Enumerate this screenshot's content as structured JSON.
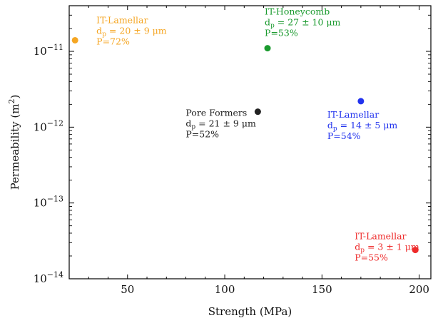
{
  "chart_data": {
    "type": "scatter",
    "title": "",
    "xlabel": "Strength (MPa)",
    "ylabel": "Permeability (m²)",
    "xlim": [
      20,
      206
    ],
    "ylim": [
      1e-14,
      4e-11
    ],
    "yscale": "log",
    "xticks": [
      50,
      100,
      150,
      200
    ],
    "yticks": [
      {
        "value": 1e-14,
        "mantissa": "10",
        "exponent": "−14"
      },
      {
        "value": 1e-13,
        "mantissa": "10",
        "exponent": "−13"
      },
      {
        "value": 1e-12,
        "mantissa": "10",
        "exponent": "−12"
      },
      {
        "value": 1e-11,
        "mantissa": "10",
        "exponent": "−11"
      }
    ],
    "grid": false,
    "points": [
      {
        "x": 23,
        "y": 1.4e-11,
        "color": "#f5a623",
        "label": {
          "name": "IT-Lamellar",
          "dp_prefix": "d",
          "dp_sub": "p",
          "dp_value": " = 20 ± 9 μm",
          "porosity": "P=72%"
        }
      },
      {
        "x": 122,
        "y": 1.1e-11,
        "color": "#1a9a2e",
        "label": {
          "name": "IT-Honeycomb",
          "dp_prefix": "d",
          "dp_sub": "p",
          "dp_value": " = 27 ± 10 μm",
          "porosity": "P=53%"
        }
      },
      {
        "x": 170,
        "y": 2.2e-12,
        "color": "#2233ee",
        "label": {
          "name": "IT-Lamellar",
          "dp_prefix": "d",
          "dp_sub": "p",
          "dp_value": " = 14 ± 5 μm",
          "porosity": "P=54%"
        }
      },
      {
        "x": 117,
        "y": 1.6e-12,
        "color": "#222222",
        "label": {
          "name": "Pore Formers",
          "dp_prefix": "d",
          "dp_sub": "p",
          "dp_value": " = 21 ± 9 μm",
          "porosity": "P=52%"
        }
      },
      {
        "x": 198,
        "y": 2.4e-14,
        "color": "#ee2a2a",
        "label": {
          "name": "IT-Lamellar",
          "dp_prefix": "d",
          "dp_sub": "p",
          "dp_value": " = 3 ± 1 μm",
          "porosity": "P=55%"
        }
      }
    ]
  }
}
